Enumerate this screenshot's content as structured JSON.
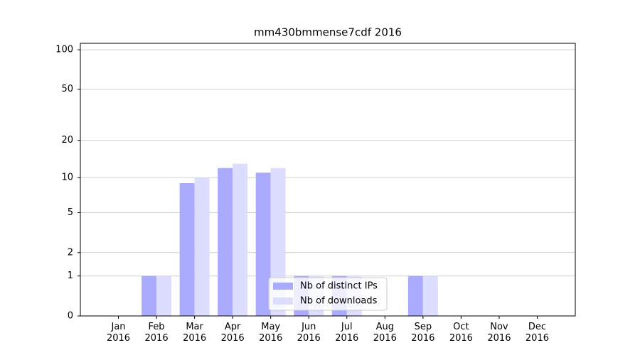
{
  "chart_data": {
    "type": "bar",
    "title": "mm430bmmense7cdf 2016",
    "categories": [
      "Jan 2016",
      "Feb 2016",
      "Mar 2016",
      "Apr 2016",
      "May 2016",
      "Jun 2016",
      "Jul 2016",
      "Aug 2016",
      "Sep 2016",
      "Oct 2016",
      "Nov 2016",
      "Dec 2016"
    ],
    "series": [
      {
        "name": "Nb of distinct IPs",
        "color": "#aaaaff",
        "values": [
          0,
          1,
          9,
          12,
          11,
          1,
          1,
          0,
          1,
          0,
          0,
          0
        ]
      },
      {
        "name": "Nb of downloads",
        "color": "#ddddff",
        "values": [
          0,
          1,
          10,
          13,
          12,
          1,
          1,
          0,
          1,
          0,
          0,
          0
        ]
      }
    ],
    "ylim": [
      0,
      112
    ],
    "yticks": [
      0,
      1,
      2,
      5,
      10,
      20,
      50,
      100
    ],
    "yscale": "log1p",
    "grid": true,
    "legend": "lower center"
  }
}
